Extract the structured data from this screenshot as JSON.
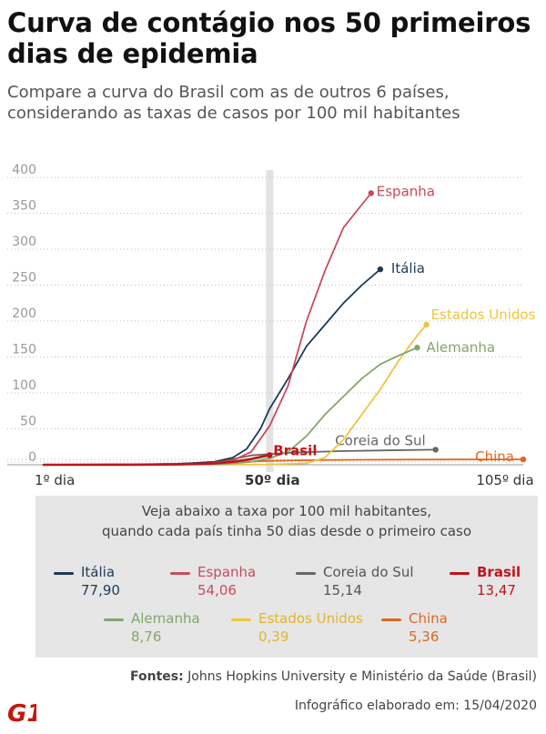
{
  "header": {
    "title": "Curva de contágio nos 50 primeiros dias de epidemia",
    "subtitle": "Compare a curva do Brasil com as de outros 6 países, considerando as taxas de casos por 100 mil habitantes"
  },
  "chart_data": {
    "type": "line",
    "title": "Curva de contágio nos 50 primeiros dias de epidemia",
    "subtitle": "Compare a curva do Brasil com as de outros 6 países, considerando as taxas de casos por 100 mil habitantes",
    "xlabel": "",
    "ylabel": "",
    "xlim": [
      1,
      105
    ],
    "ylim": [
      0,
      400
    ],
    "yticks": [
      0,
      50,
      100,
      150,
      200,
      250,
      300,
      350,
      400
    ],
    "xtick_labels": [
      {
        "x": 1,
        "label": "1º dia"
      },
      {
        "x": 50,
        "label": "50º dia"
      },
      {
        "x": 105,
        "label": "105º dia"
      }
    ],
    "highlight_x": 50,
    "grid": "horizontal dotted",
    "series": [
      {
        "name": "Itália",
        "color": "#1d3a56",
        "end_label": "Itália",
        "points": [
          [
            1,
            0
          ],
          [
            20,
            0.3
          ],
          [
            30,
            1
          ],
          [
            38,
            4
          ],
          [
            42,
            10
          ],
          [
            45,
            22
          ],
          [
            48,
            50
          ],
          [
            50,
            78
          ],
          [
            54,
            120
          ],
          [
            58,
            165
          ],
          [
            62,
            195
          ],
          [
            66,
            225
          ],
          [
            70,
            250
          ],
          [
            74,
            272
          ]
        ]
      },
      {
        "name": "Espanha",
        "color": "#c94b5b",
        "end_label": "Espanha",
        "points": [
          [
            1,
            0
          ],
          [
            25,
            0.2
          ],
          [
            35,
            1
          ],
          [
            42,
            6
          ],
          [
            46,
            18
          ],
          [
            50,
            54
          ],
          [
            54,
            110
          ],
          [
            58,
            200
          ],
          [
            62,
            270
          ],
          [
            66,
            330
          ],
          [
            70,
            362
          ],
          [
            72,
            378
          ]
        ]
      },
      {
        "name": "Coreia do Sul",
        "color": "#666666",
        "end_label": "Coreia do Sul",
        "points": [
          [
            1,
            0
          ],
          [
            20,
            0.1
          ],
          [
            30,
            1
          ],
          [
            38,
            4
          ],
          [
            42,
            8
          ],
          [
            46,
            13
          ],
          [
            50,
            15
          ],
          [
            55,
            17
          ],
          [
            65,
            19
          ],
          [
            75,
            20
          ],
          [
            86,
            21
          ]
        ]
      },
      {
        "name": "Brasil",
        "color": "#c0141a",
        "end_label": "Brasil",
        "points": [
          [
            1,
            0
          ],
          [
            20,
            0.1
          ],
          [
            30,
            0.5
          ],
          [
            38,
            2
          ],
          [
            42,
            4
          ],
          [
            46,
            8
          ],
          [
            50,
            13.5
          ]
        ]
      },
      {
        "name": "Alemanha",
        "color": "#82a66a",
        "end_label": "Alemanha",
        "points": [
          [
            1,
            0
          ],
          [
            30,
            0.2
          ],
          [
            40,
            1
          ],
          [
            46,
            4
          ],
          [
            50,
            9
          ],
          [
            54,
            18
          ],
          [
            58,
            40
          ],
          [
            62,
            70
          ],
          [
            66,
            95
          ],
          [
            70,
            120
          ],
          [
            74,
            140
          ],
          [
            78,
            152
          ],
          [
            82,
            163
          ]
        ]
      },
      {
        "name": "Estados Unidos",
        "color": "#f1c43f",
        "end_label": "Estados Unidos",
        "points": [
          [
            1,
            0
          ],
          [
            40,
            0.1
          ],
          [
            50,
            0.4
          ],
          [
            58,
            2
          ],
          [
            62,
            10
          ],
          [
            66,
            35
          ],
          [
            70,
            70
          ],
          [
            74,
            105
          ],
          [
            78,
            145
          ],
          [
            82,
            180
          ],
          [
            84,
            195
          ]
        ]
      },
      {
        "name": "China",
        "color": "#e0661f",
        "end_label": "China",
        "points": [
          [
            1,
            0
          ],
          [
            20,
            0.5
          ],
          [
            30,
            1.5
          ],
          [
            40,
            3
          ],
          [
            50,
            5.4
          ],
          [
            60,
            6.5
          ],
          [
            70,
            7
          ],
          [
            80,
            7.2
          ],
          [
            90,
            7.4
          ],
          [
            100,
            7.5
          ],
          [
            105,
            7.5
          ]
        ]
      }
    ]
  },
  "legend": {
    "intro_line1": "Veja abaixo a taxa por 100 mil habitantes,",
    "intro_line2": "quando cada país tinha 50 dias desde o primeiro caso",
    "items": [
      {
        "name": "Itália",
        "value": "77,90",
        "color": "#1d3a56",
        "name_color": "#1d3a56",
        "value_color": "#1d3a56",
        "bold": false
      },
      {
        "name": "Espanha",
        "value": "54,06",
        "color": "#c94b5b",
        "name_color": "#c94b5b",
        "value_color": "#c94b5b",
        "bold": false
      },
      {
        "name": "Coreia do Sul",
        "value": "15,14",
        "color": "#666666",
        "name_color": "#555555",
        "value_color": "#555555",
        "bold": false
      },
      {
        "name": "Brasil",
        "value": "13,47",
        "color": "#c0141a",
        "name_color": "#c0141a",
        "value_color": "#c0141a",
        "bold": true
      },
      {
        "name": "Alemanha",
        "value": "8,76",
        "color": "#82a66a",
        "name_color": "#82a66a",
        "value_color": "#82a66a",
        "bold": false
      },
      {
        "name": "Estados Unidos",
        "value": "0,39",
        "color": "#f1c43f",
        "name_color": "#e0b52b",
        "value_color": "#e0b52b",
        "bold": false
      },
      {
        "name": "China",
        "value": "5,36",
        "color": "#e0661f",
        "name_color": "#e0661f",
        "value_color": "#e0661f",
        "bold": false
      }
    ]
  },
  "footer": {
    "sources_label": "Fontes:",
    "sources_text": " Johns Hopkins University e Ministério da Saúde (Brasil)",
    "logo_text": "G1",
    "date_text": "Infográfico elaborado em: 15/04/2020"
  },
  "colors": {
    "highlight_band": "#e3e3e3",
    "grid": "#bbbbbb",
    "axis_text": "#999999",
    "legend_bg": "#e6e6e6",
    "g1_red": "#c4170c"
  }
}
